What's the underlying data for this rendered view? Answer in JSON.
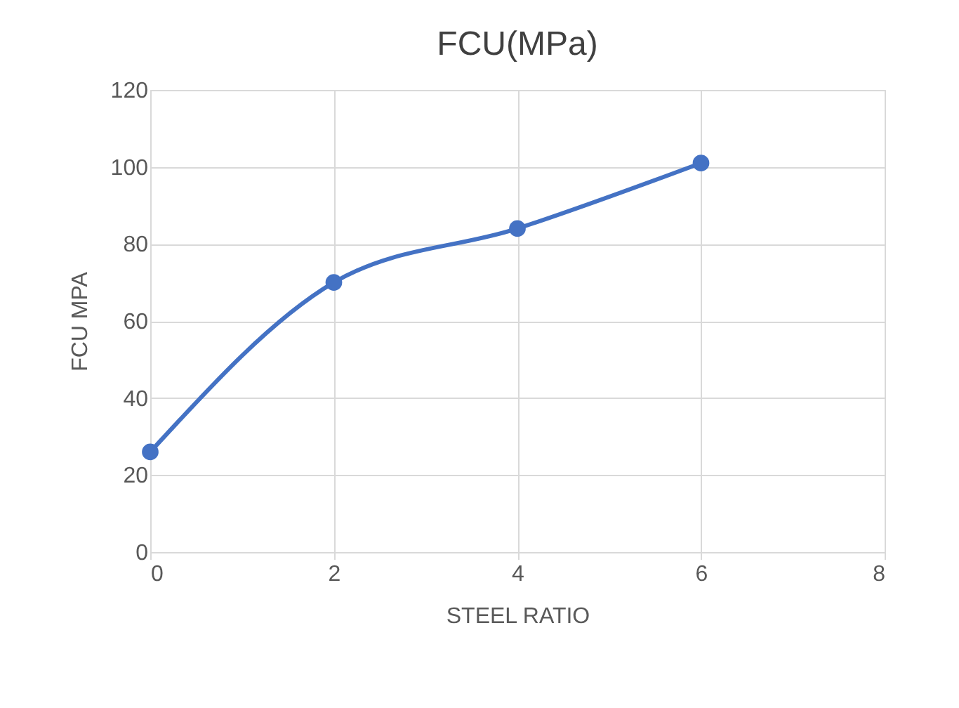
{
  "chart_data": {
    "type": "line",
    "title": "FCU(MPa)",
    "xlabel": "STEEL RATIO",
    "ylabel": "FCU MPA",
    "x": [
      0,
      2,
      4,
      6
    ],
    "series": [
      {
        "color": "#4472c4",
        "values": [
          26,
          70,
          84,
          101
        ]
      }
    ],
    "xlim": [
      0,
      8
    ],
    "xticks": [
      0,
      2,
      4,
      6,
      8
    ],
    "ylim": [
      0,
      120
    ],
    "yticks": [
      0,
      20,
      40,
      60,
      80,
      100,
      120
    ],
    "grid": true,
    "marker": "circle",
    "line_style": "solid"
  }
}
